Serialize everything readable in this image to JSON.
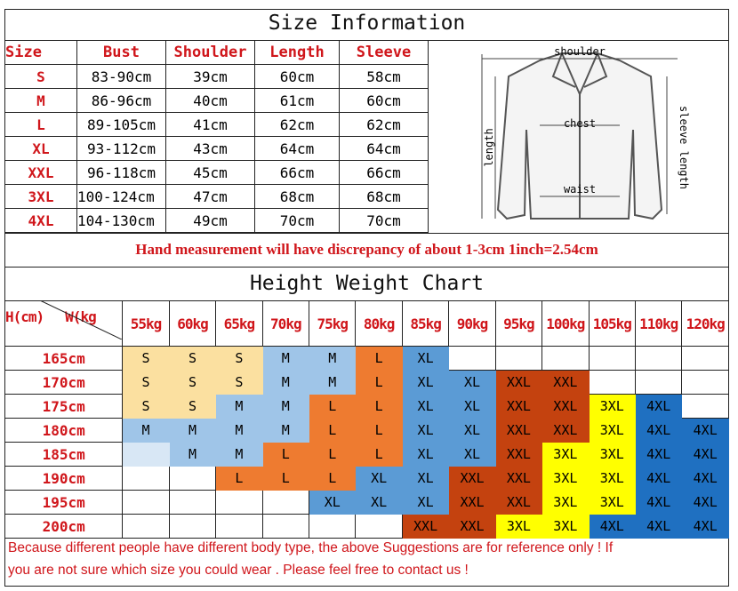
{
  "size_info": {
    "title": "Size Information",
    "headers": [
      "Size",
      "Bust",
      "Shoulder",
      "Length",
      "Sleeve"
    ],
    "rows": [
      [
        "S",
        "83-90cm",
        "39cm",
        "60cm",
        "58cm"
      ],
      [
        "M",
        "86-96cm",
        "40cm",
        "61cm",
        "60cm"
      ],
      [
        "L",
        "89-105cm",
        "41cm",
        "62cm",
        "62cm"
      ],
      [
        "XL",
        "93-112cm",
        "43cm",
        "64cm",
        "64cm"
      ],
      [
        "XXL",
        "96-118cm",
        "45cm",
        "66cm",
        "66cm"
      ],
      [
        "3XL",
        "100-124cm",
        "47cm",
        "68cm",
        "68cm"
      ],
      [
        "4XL",
        "104-130cm",
        "49cm",
        "70cm",
        "70cm"
      ]
    ],
    "diagram_labels": {
      "shoulder": "shoulder",
      "chest": "chest",
      "waist": "waist",
      "length": "length",
      "sleeve": "sleeve length"
    },
    "note": "Hand measurement will have discrepancy of about 1-3cm  1inch=2.54cm"
  },
  "height_weight": {
    "title": "Height Weight Chart",
    "corner_h": "H(cm)",
    "corner_w": "W(kg",
    "weights": [
      "55kg",
      "60kg",
      "65kg",
      "70kg",
      "75kg",
      "80kg",
      "85kg",
      "90kg",
      "95kg",
      "100kg",
      "105kg",
      "110kg",
      "120kg"
    ],
    "heights": [
      "165cm",
      "170cm",
      "175cm",
      "180cm",
      "185cm",
      "190cm",
      "195cm",
      "200cm"
    ],
    "grid": [
      [
        "S",
        "S",
        "S",
        "M",
        "M",
        "L",
        "XL",
        "",
        "",
        "",
        "",
        "",
        ""
      ],
      [
        "S",
        "S",
        "S",
        "M",
        "M",
        "L",
        "XL",
        "XL",
        "XXL",
        "XXL",
        "",
        "",
        ""
      ],
      [
        "S",
        "S",
        "M",
        "M",
        "L",
        "L",
        "XL",
        "XL",
        "XXL",
        "XXL",
        "3XL",
        "4XL",
        ""
      ],
      [
        "M",
        "M",
        "M",
        "M",
        "L",
        "L",
        "XL",
        "XL",
        "XXL",
        "XXL",
        "3XL",
        "4XL",
        "4XL"
      ],
      [
        "*",
        "M",
        "M",
        "L",
        "L",
        "L",
        "XL",
        "XL",
        "XXL",
        "3XL",
        "3XL",
        "4XL",
        "4XL"
      ],
      [
        "",
        "",
        "L",
        "L",
        "L",
        "XL",
        "XL",
        "XXL",
        "XXL",
        "3XL",
        "3XL",
        "4XL",
        "4XL"
      ],
      [
        "",
        "",
        "",
        "",
        "XL",
        "XL",
        "XL",
        "XXL",
        "XXL",
        "3XL",
        "3XL",
        "4XL",
        "4XL"
      ],
      [
        "",
        "",
        "",
        "",
        "",
        "",
        "XXL",
        "XXL",
        "3XL",
        "3XL",
        "4XL",
        "4XL",
        "4XL"
      ]
    ],
    "colors": {
      "S": "#fbe0a0",
      "M": "#9fc5e8",
      "L": "#ee7b30",
      "XL": "#5b9bd5",
      "XXL": "#c4420f",
      "3XL": "#ffff00",
      "4XL": "#1f70c1",
      "*": "#d8e7f5"
    }
  },
  "footer": {
    "line1": "Because different people have different body type, the above Suggestions are for reference only ! If",
    "line2": "you are not sure which size you could wear . Please feel free to contact us !"
  }
}
